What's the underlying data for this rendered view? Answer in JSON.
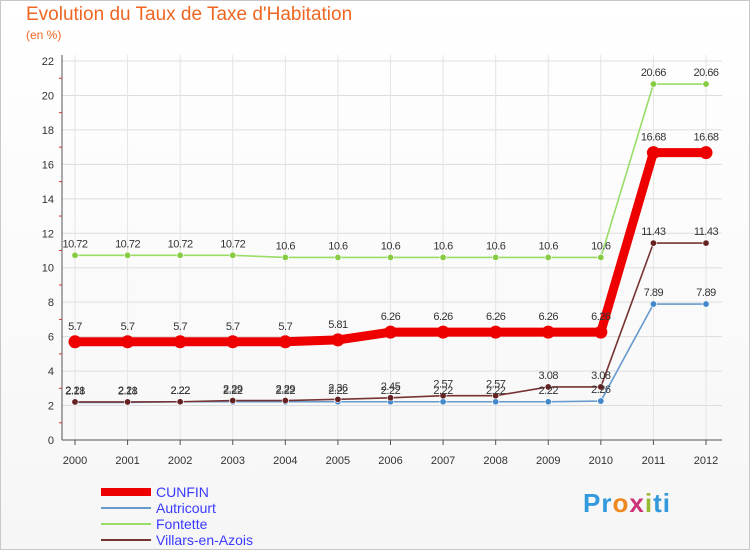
{
  "title": "Evolution du Taux de Taxe d'Habitation",
  "unit": "(en %)",
  "chart_data": {
    "type": "line",
    "title": "Evolution du Taux de Taxe d'Habitation",
    "ylabel": "(en %)",
    "xlabel": "",
    "ylim": [
      0,
      22
    ],
    "yticks": [
      "0",
      "2",
      "4",
      "6",
      "8",
      "10",
      "12",
      "14",
      "16",
      "18",
      "20",
      "22"
    ],
    "categories": [
      "2000",
      "2001",
      "2002",
      "2003",
      "2004",
      "2005",
      "2006",
      "2007",
      "2008",
      "2009",
      "2010",
      "2011",
      "2012"
    ],
    "grid": true,
    "series": [
      {
        "name": "Fontette",
        "color": "#99dd66",
        "marker": "#88cc44",
        "values": [
          10.72,
          10.72,
          10.72,
          10.72,
          10.6,
          10.6,
          10.6,
          10.6,
          10.6,
          10.6,
          10.6,
          20.66,
          20.66
        ],
        "labels": [
          "10.72",
          "10.72",
          "10.72",
          "10.72",
          "10.6",
          "10.6",
          "10.6",
          "10.6",
          "10.6",
          "10.6",
          "10.6",
          "20.66",
          "20.66"
        ]
      },
      {
        "name": "Autricourt",
        "color": "#6699cc",
        "marker": "#4488cc",
        "values": [
          2.18,
          2.18,
          2.22,
          2.22,
          2.22,
          2.22,
          2.22,
          2.22,
          2.22,
          2.22,
          2.26,
          7.89,
          7.89
        ],
        "labels": [
          "2.18",
          "2.18",
          "2.22",
          "2.22",
          "2.22",
          "2.22",
          "2.22",
          "2.22",
          "2.22",
          "2.22",
          "2.26",
          "7.89",
          "7.89"
        ]
      },
      {
        "name": "Villars-en-Azois",
        "color": "#773333",
        "marker": "#662222",
        "values": [
          2.21,
          2.21,
          2.22,
          2.29,
          2.29,
          2.36,
          2.45,
          2.57,
          2.57,
          3.08,
          3.08,
          11.43,
          11.43
        ],
        "labels": [
          "2.21",
          "2.21",
          "2.22",
          "2.29",
          "2.29",
          "2.36",
          "2.45",
          "2.57",
          "2.57",
          "3.08",
          "3.08",
          "11.43",
          "11.43"
        ]
      },
      {
        "name": "CUNFIN",
        "color": "#ee0000",
        "marker": "#ee0000",
        "values": [
          5.7,
          5.7,
          5.7,
          5.7,
          5.7,
          5.81,
          6.26,
          6.26,
          6.26,
          6.26,
          6.26,
          16.68,
          16.68
        ],
        "labels": [
          "5.7",
          "5.7",
          "5.7",
          "5.7",
          "5.7",
          "5.81",
          "6.26",
          "6.26",
          "6.26",
          "6.26",
          "6.26",
          "16.68",
          "16.68"
        ]
      }
    ]
  },
  "legend": [
    {
      "name": "CUNFIN",
      "color": "#ee0000"
    },
    {
      "name": "Autricourt",
      "color": "#6699cc"
    },
    {
      "name": "Fontette",
      "color": "#99dd66"
    },
    {
      "name": "Villars-en-Azois",
      "color": "#773333"
    }
  ],
  "logo": {
    "text": "Proxiti",
    "letters": [
      "P",
      "r",
      "o",
      "x",
      "i",
      "t",
      "i"
    ],
    "colors": [
      "#3399dd",
      "#3399dd",
      "#ee8822",
      "#cc3377",
      "#99bb33",
      "#3399dd",
      "#3399dd"
    ]
  }
}
